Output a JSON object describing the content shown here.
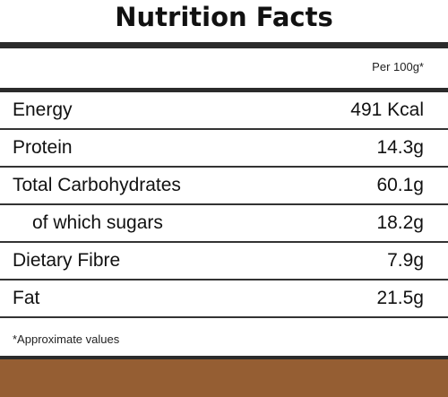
{
  "label": {
    "title": "Nutrition Facts",
    "per_serving": "Per 100g*",
    "rows": [
      {
        "name": "Energy",
        "value": "491 Kcal"
      },
      {
        "name": "Protein",
        "value": "14.3g"
      },
      {
        "name": "Total Carbohydrates",
        "value": "60.1g"
      },
      {
        "name": "of which sugars",
        "value": "18.2g"
      },
      {
        "name": "Dietary Fibre",
        "value": "7.9g"
      },
      {
        "name": "Fat",
        "value": "21.5g"
      }
    ],
    "footnote": "*Approximate values"
  },
  "colors": {
    "rule": "#2b2b2b",
    "band": "#955e33",
    "text": "#111111"
  }
}
